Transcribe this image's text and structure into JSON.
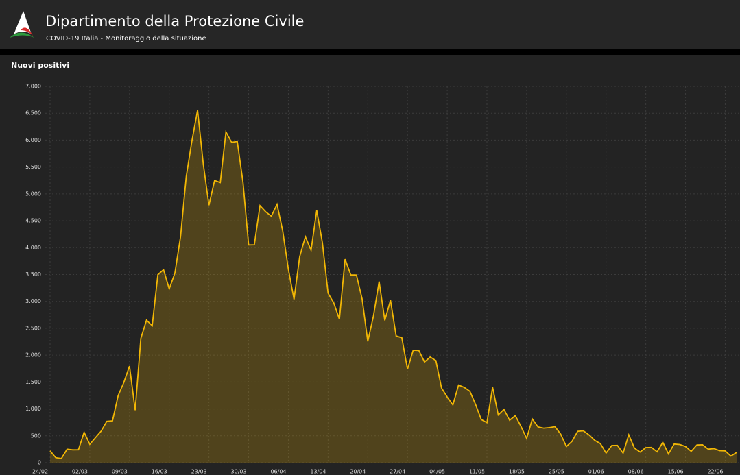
{
  "header": {
    "title": "Dipartimento della Protezione Civile",
    "subtitle": "COVID-19 Italia - Monitoraggio della situazione"
  },
  "chart_data": {
    "type": "area",
    "title": "Nuovi positivi",
    "color": "#f2b705",
    "grid": true,
    "ylim": [
      0,
      7000
    ],
    "yticks": [
      0,
      500,
      {
        "value": 1000,
        "label": "1.000"
      },
      {
        "value": 1500,
        "label": "1.500"
      },
      {
        "value": 2000,
        "label": "2.000"
      },
      {
        "value": 2500,
        "label": "2.500"
      },
      {
        "value": 3000,
        "label": "3.000"
      },
      {
        "value": 3500,
        "label": "3.500"
      },
      {
        "value": 4000,
        "label": "4.000"
      },
      {
        "value": 4500,
        "label": "4.500"
      },
      {
        "value": 5000,
        "label": "5.000"
      },
      {
        "value": 5500,
        "label": "5.500"
      },
      {
        "value": 6000,
        "label": "6.000"
      },
      {
        "value": 6500,
        "label": "6.500"
      },
      {
        "value": 7000,
        "label": "7.000"
      }
    ],
    "categories": [
      "24/02",
      null,
      null,
      null,
      null,
      null,
      null,
      "02/03",
      null,
      null,
      null,
      null,
      null,
      null,
      "09/03",
      null,
      null,
      null,
      null,
      null,
      null,
      "16/03",
      null,
      null,
      null,
      null,
      null,
      null,
      "23/03",
      null,
      null,
      null,
      null,
      null,
      null,
      "30/03",
      null,
      null,
      null,
      null,
      null,
      null,
      "06/04",
      null,
      null,
      null,
      null,
      null,
      null,
      "13/04",
      null,
      null,
      null,
      null,
      null,
      null,
      "20/04",
      null,
      null,
      null,
      null,
      null,
      null,
      "27/04",
      null,
      null,
      null,
      null,
      null,
      null,
      "04/05",
      null,
      null,
      null,
      null,
      null,
      null,
      "11/05",
      null,
      null,
      null,
      null,
      null,
      null,
      "18/05",
      null,
      null,
      null,
      null,
      null,
      null,
      "25/05",
      null,
      null,
      null,
      null,
      null,
      null,
      "01/06",
      null,
      null,
      null,
      null,
      null,
      null,
      "08/06",
      null,
      null,
      null,
      null,
      null,
      null,
      "15/06",
      null,
      null,
      null,
      null,
      null,
      null,
      "22/06",
      null,
      null
    ],
    "values": [
      221,
      93,
      78,
      250,
      238,
      240,
      566,
      342,
      466,
      587,
      769,
      778,
      1247,
      1492,
      1797,
      977,
      2313,
      2651,
      2547,
      3497,
      3590,
      3233,
      3526,
      4207,
      5322,
      5986,
      6557,
      5560,
      4789,
      5249,
      5210,
      6153,
      5959,
      5974,
      5217,
      4050,
      4053,
      4782,
      4668,
      4585,
      4805,
      4316,
      3599,
      3039,
      3836,
      4204,
      3951,
      4694,
      4092,
      3153,
      2972,
      2667,
      3786,
      3493,
      3491,
      3047,
      2256,
      2729,
      3370,
      2646,
      3021,
      2357,
      2324,
      1739,
      2091,
      2086,
      1872,
      1965,
      1900,
      1389,
      1221,
      1075,
      1444,
      1401,
      1327,
      1083,
      802,
      744,
      1402,
      888,
      992,
      789,
      875,
      675,
      451,
      813,
      665,
      642,
      652,
      669,
      531,
      300,
      397,
      584,
      593,
      516,
      416,
      355,
      178,
      318,
      321,
      177,
      518,
      270,
      197,
      280,
      283,
      202,
      379,
      163,
      346,
      338,
      301,
      210,
      329,
      333,
      251,
      262,
      224,
      218,
      122,
      190
    ]
  }
}
